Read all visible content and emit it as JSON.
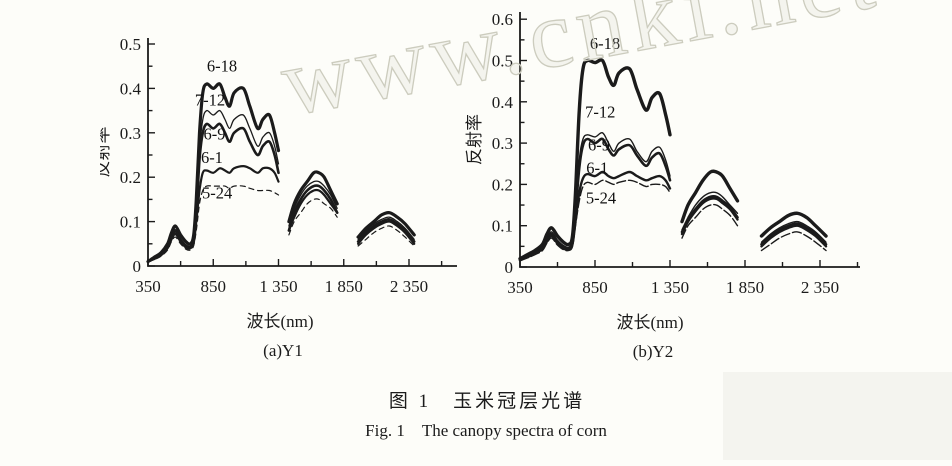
{
  "page": {
    "background": "#fdfdf9",
    "ink": "#1b1b1b"
  },
  "watermark": {
    "text": "www.cnki.net",
    "color": "#ccccbe"
  },
  "figure": {
    "caption_zh": "图 1　玉米冠层光谱",
    "caption_en": "Fig. 1　The canopy spectra of corn"
  },
  "chart_data": [
    {
      "type": "line",
      "panel": "a",
      "title": "(a)Y1",
      "xlabel": "波长(nm)",
      "ylabel": "反射率",
      "xlim": [
        350,
        2500
      ],
      "ylim": [
        0,
        0.5
      ],
      "x_ticks": [
        350,
        850,
        1350,
        1850,
        2350
      ],
      "x_tick_labels": [
        "350",
        "850",
        "1 350",
        "1 850",
        "2 350"
      ],
      "y_ticks": [
        0,
        0.1,
        0.2,
        0.3,
        0.4,
        0.5
      ],
      "y_tick_labels": [
        "0",
        "0.1",
        "0.2",
        "0.3",
        "0.4",
        "0.5"
      ],
      "grid": false,
      "legend_position": "labels-on-curves",
      "segments_x": [
        [
          350,
          400,
          450,
          500,
          530,
          560,
          600,
          640,
          675,
          700,
          720,
          745,
          770,
          800,
          850,
          900,
          940,
          975,
          1010,
          1080,
          1130,
          1190,
          1230,
          1280,
          1320,
          1350
        ],
        [
          1430,
          1470,
          1520,
          1570,
          1620,
          1660,
          1700,
          1750,
          1800
        ],
        [
          1960,
          2020,
          2080,
          2140,
          2200,
          2260,
          2320,
          2390
        ]
      ],
      "series": [
        {
          "name": "6-18",
          "width": 3.2,
          "y": [
            [
              0.01,
              0.02,
              0.03,
              0.05,
              0.075,
              0.09,
              0.07,
              0.055,
              0.05,
              0.07,
              0.15,
              0.3,
              0.39,
              0.41,
              0.4,
              0.41,
              0.38,
              0.36,
              0.39,
              0.4,
              0.36,
              0.31,
              0.33,
              0.34,
              0.3,
              0.26
            ],
            [
              0.1,
              0.14,
              0.17,
              0.19,
              0.21,
              0.21,
              0.2,
              0.17,
              0.14
            ],
            [
              0.065,
              0.085,
              0.1,
              0.115,
              0.12,
              0.11,
              0.095,
              0.07
            ]
          ]
        },
        {
          "name": "7-12",
          "width": 1.3,
          "y": [
            [
              0.01,
              0.018,
              0.028,
              0.045,
              0.068,
              0.082,
              0.062,
              0.048,
              0.045,
              0.062,
              0.13,
              0.26,
              0.33,
              0.35,
              0.34,
              0.35,
              0.33,
              0.31,
              0.33,
              0.34,
              0.31,
              0.27,
              0.29,
              0.3,
              0.27,
              0.23
            ],
            [
              0.09,
              0.13,
              0.16,
              0.18,
              0.19,
              0.19,
              0.18,
              0.16,
              0.13
            ],
            [
              0.06,
              0.08,
              0.095,
              0.105,
              0.11,
              0.1,
              0.085,
              0.06
            ]
          ]
        },
        {
          "name": "6-9",
          "width": 2.6,
          "y": [
            [
              0.01,
              0.017,
              0.026,
              0.042,
              0.065,
              0.078,
              0.058,
              0.045,
              0.042,
              0.058,
              0.12,
              0.24,
              0.3,
              0.32,
              0.31,
              0.32,
              0.3,
              0.28,
              0.3,
              0.31,
              0.28,
              0.25,
              0.27,
              0.28,
              0.25,
              0.21
            ],
            [
              0.08,
              0.12,
              0.15,
              0.17,
              0.18,
              0.18,
              0.17,
              0.15,
              0.12
            ],
            [
              0.055,
              0.075,
              0.09,
              0.1,
              0.105,
              0.095,
              0.08,
              0.055
            ]
          ]
        },
        {
          "name": "6-1",
          "width": 2.2,
          "y": [
            [
              0.01,
              0.016,
              0.024,
              0.04,
              0.06,
              0.072,
              0.055,
              0.042,
              0.04,
              0.052,
              0.1,
              0.17,
              0.21,
              0.215,
              0.21,
              0.22,
              0.215,
              0.21,
              0.22,
              0.225,
              0.22,
              0.21,
              0.22,
              0.22,
              0.21,
              0.19
            ],
            [
              0.08,
              0.11,
              0.14,
              0.16,
              0.17,
              0.17,
              0.16,
              0.14,
              0.12
            ],
            [
              0.05,
              0.07,
              0.085,
              0.095,
              0.1,
              0.09,
              0.075,
              0.05
            ]
          ]
        },
        {
          "name": "5-24",
          "width": 1.2,
          "dash": "5 4",
          "y": [
            [
              0.01,
              0.015,
              0.022,
              0.036,
              0.055,
              0.065,
              0.05,
              0.038,
              0.036,
              0.046,
              0.08,
              0.14,
              0.17,
              0.18,
              0.18,
              0.18,
              0.18,
              0.175,
              0.18,
              0.18,
              0.175,
              0.17,
              0.17,
              0.17,
              0.165,
              0.16
            ],
            [
              0.07,
              0.1,
              0.12,
              0.14,
              0.15,
              0.15,
              0.14,
              0.13,
              0.11
            ],
            [
              0.045,
              0.06,
              0.075,
              0.085,
              0.09,
              0.08,
              0.065,
              0.045
            ]
          ]
        }
      ],
      "labels": [
        {
          "text": "6-18",
          "x": 917,
          "y": 0.438
        },
        {
          "text": "7-12",
          "x": 825,
          "y": 0.362
        },
        {
          "text": "6-9",
          "x": 860,
          "y": 0.285
        },
        {
          "text": "6-1",
          "x": 840,
          "y": 0.232
        },
        {
          "text": "5-24",
          "x": 880,
          "y": 0.152
        }
      ]
    },
    {
      "type": "line",
      "panel": "b",
      "title": "(b)Y2",
      "xlabel": "波长(nm)",
      "ylabel": "反射率",
      "xlim": [
        350,
        2500
      ],
      "ylim": [
        0,
        0.6
      ],
      "x_ticks": [
        350,
        850,
        1350,
        1850,
        2350
      ],
      "x_tick_labels": [
        "350",
        "850",
        "1 350",
        "1 850",
        "2 350"
      ],
      "y_ticks": [
        0,
        0.1,
        0.2,
        0.3,
        0.4,
        0.5,
        0.6
      ],
      "y_tick_labels": [
        "0",
        "0.1",
        "0.2",
        "0.3",
        "0.4",
        "0.5",
        "0.6"
      ],
      "grid": false,
      "legend_position": "labels-on-curves",
      "segments_x": [
        [
          350,
          400,
          450,
          500,
          530,
          560,
          600,
          640,
          675,
          700,
          720,
          745,
          770,
          800,
          850,
          900,
          940,
          975,
          1010,
          1080,
          1130,
          1190,
          1230,
          1280,
          1320,
          1350
        ],
        [
          1430,
          1470,
          1520,
          1570,
          1620,
          1660,
          1700,
          1750,
          1800
        ],
        [
          1960,
          2020,
          2080,
          2140,
          2200,
          2260,
          2320,
          2390
        ]
      ],
      "series": [
        {
          "name": "6-18",
          "width": 3.4,
          "y": [
            [
              0.02,
              0.03,
              0.04,
              0.055,
              0.08,
              0.095,
              0.075,
              0.06,
              0.055,
              0.075,
              0.18,
              0.38,
              0.48,
              0.5,
              0.495,
              0.5,
              0.46,
              0.44,
              0.47,
              0.48,
              0.43,
              0.38,
              0.41,
              0.42,
              0.37,
              0.32
            ],
            [
              0.11,
              0.15,
              0.18,
              0.21,
              0.23,
              0.23,
              0.22,
              0.19,
              0.16
            ],
            [
              0.075,
              0.095,
              0.11,
              0.125,
              0.13,
              0.12,
              0.1,
              0.075
            ]
          ]
        },
        {
          "name": "7-12",
          "width": 1.4,
          "y": [
            [
              0.018,
              0.027,
              0.036,
              0.05,
              0.07,
              0.085,
              0.065,
              0.052,
              0.048,
              0.065,
              0.14,
              0.26,
              0.31,
              0.32,
              0.315,
              0.325,
              0.3,
              0.28,
              0.3,
              0.31,
              0.28,
              0.255,
              0.28,
              0.29,
              0.26,
              0.22
            ],
            [
              0.09,
              0.12,
              0.15,
              0.17,
              0.18,
              0.18,
              0.17,
              0.15,
              0.13
            ],
            [
              0.06,
              0.08,
              0.095,
              0.105,
              0.11,
              0.1,
              0.085,
              0.06
            ]
          ]
        },
        {
          "name": "6-9",
          "width": 2.6,
          "y": [
            [
              0.017,
              0.026,
              0.034,
              0.047,
              0.067,
              0.08,
              0.06,
              0.048,
              0.045,
              0.06,
              0.13,
              0.24,
              0.295,
              0.31,
              0.3,
              0.31,
              0.285,
              0.27,
              0.285,
              0.295,
              0.27,
              0.245,
              0.265,
              0.275,
              0.245,
              0.21
            ],
            [
              0.085,
              0.115,
              0.14,
              0.16,
              0.17,
              0.17,
              0.16,
              0.145,
              0.12
            ],
            [
              0.055,
              0.075,
              0.09,
              0.1,
              0.105,
              0.095,
              0.08,
              0.055
            ]
          ]
        },
        {
          "name": "6-1",
          "width": 2.4,
          "y": [
            [
              0.016,
              0.024,
              0.032,
              0.044,
              0.062,
              0.075,
              0.057,
              0.045,
              0.042,
              0.055,
              0.11,
              0.18,
              0.215,
              0.225,
              0.22,
              0.23,
              0.22,
              0.215,
              0.22,
              0.23,
              0.22,
              0.21,
              0.215,
              0.22,
              0.21,
              0.19
            ],
            [
              0.08,
              0.11,
              0.135,
              0.155,
              0.165,
              0.165,
              0.155,
              0.14,
              0.115
            ],
            [
              0.05,
              0.07,
              0.085,
              0.095,
              0.1,
              0.09,
              0.075,
              0.05
            ]
          ]
        },
        {
          "name": "5-24",
          "width": 1.4,
          "dash": "9 3",
          "y": [
            [
              0.015,
              0.022,
              0.03,
              0.04,
              0.058,
              0.07,
              0.053,
              0.042,
              0.04,
              0.05,
              0.1,
              0.16,
              0.195,
              0.205,
              0.2,
              0.21,
              0.205,
              0.2,
              0.205,
              0.21,
              0.205,
              0.195,
              0.2,
              0.2,
              0.195,
              0.18
            ],
            [
              0.07,
              0.1,
              0.12,
              0.14,
              0.15,
              0.15,
              0.14,
              0.125,
              0.1
            ],
            [
              0.04,
              0.055,
              0.07,
              0.08,
              0.085,
              0.075,
              0.06,
              0.04
            ]
          ]
        }
      ],
      "labels": [
        {
          "text": "6-18",
          "x": 917,
          "y": 0.528
        },
        {
          "text": "7-12",
          "x": 885,
          "y": 0.362
        },
        {
          "text": "6-9",
          "x": 877,
          "y": 0.282
        },
        {
          "text": "6-1",
          "x": 865,
          "y": 0.226
        },
        {
          "text": "5-24",
          "x": 890,
          "y": 0.154
        }
      ]
    }
  ]
}
